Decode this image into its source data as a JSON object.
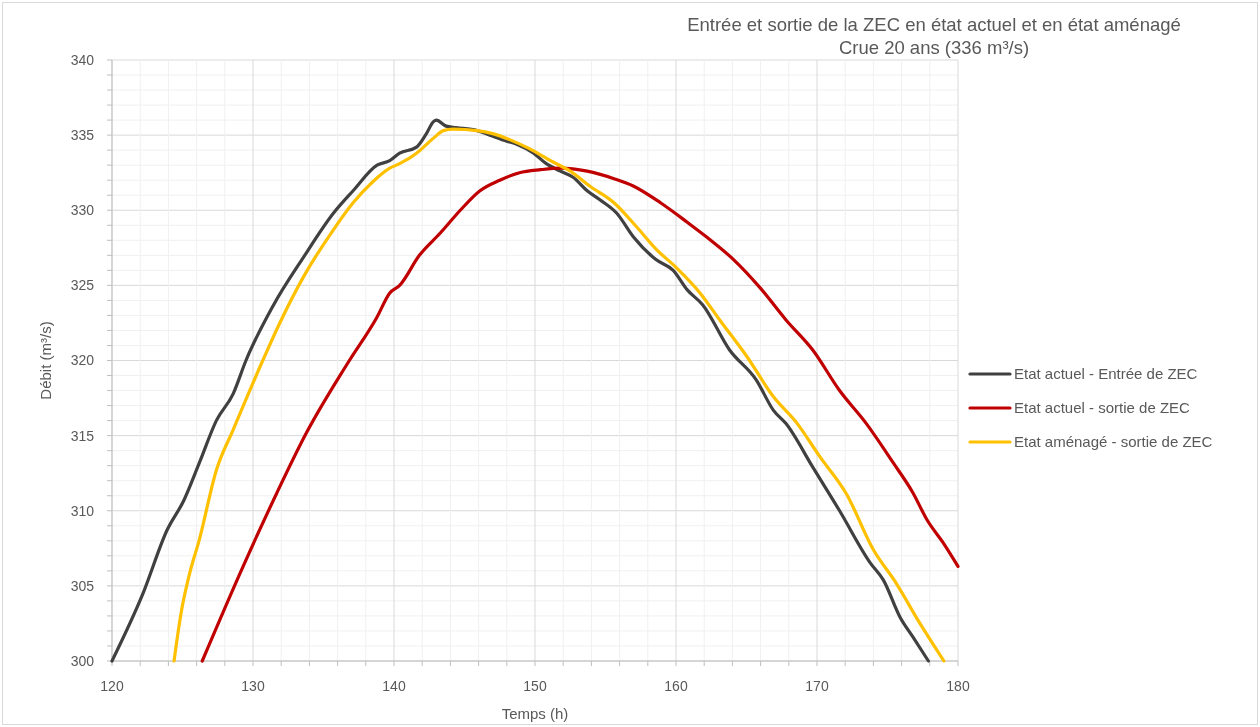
{
  "chart_data": {
    "type": "line",
    "title": "Entrée et sortie de la ZEC en état actuel et en état aménagé",
    "subtitle": "Crue 20 ans (336 m³/s)",
    "xlabel": "Temps (h)",
    "ylabel": "Débit (m³/s)",
    "xlim": [
      120,
      180
    ],
    "xticks": [
      120,
      {
        "value": 122,
        "label": null
      },
      {
        "value": 124,
        "label": null
      },
      {
        "value": 126,
        "label": null
      },
      {
        "value": 128,
        "label": null
      },
      130,
      {
        "value": 132,
        "label": null
      },
      {
        "value": 134,
        "label": null
      },
      {
        "value": 136,
        "label": null
      },
      {
        "value": 138,
        "label": null
      },
      140,
      {
        "value": 142,
        "label": null
      },
      {
        "value": 144,
        "label": null
      },
      {
        "value": 146,
        "label": null
      },
      {
        "value": 148,
        "label": null
      },
      150,
      {
        "value": 152,
        "label": null
      },
      {
        "value": 154,
        "label": null
      },
      {
        "value": 156,
        "label": null
      },
      {
        "value": 158,
        "label": null
      },
      160,
      {
        "value": 162,
        "label": null
      },
      {
        "value": 164,
        "label": null
      },
      {
        "value": 166,
        "label": null
      },
      {
        "value": 168,
        "label": null
      },
      170,
      {
        "value": 172,
        "label": null
      },
      {
        "value": 174,
        "label": null
      },
      {
        "value": 176,
        "label": null
      },
      {
        "value": 178,
        "label": null
      },
      180
    ],
    "ylim": [
      300,
      340
    ],
    "yticks": [
      300,
      {
        "value": 301,
        "label": null
      },
      {
        "value": 302,
        "label": null
      },
      {
        "value": 303,
        "label": null
      },
      {
        "value": 304,
        "label": null
      },
      305,
      {
        "value": 306,
        "label": null
      },
      {
        "value": 307,
        "label": null
      },
      {
        "value": 308,
        "label": null
      },
      {
        "value": 309,
        "label": null
      },
      310,
      {
        "value": 311,
        "label": null
      },
      {
        "value": 312,
        "label": null
      },
      {
        "value": 313,
        "label": null
      },
      {
        "value": 314,
        "label": null
      },
      315,
      {
        "value": 316,
        "label": null
      },
      {
        "value": 317,
        "label": null
      },
      {
        "value": 318,
        "label": null
      },
      {
        "value": 319,
        "label": null
      },
      320,
      {
        "value": 321,
        "label": null
      },
      {
        "value": 322,
        "label": null
      },
      {
        "value": 323,
        "label": null
      },
      {
        "value": 324,
        "label": null
      },
      325,
      {
        "value": 326,
        "label": null
      },
      {
        "value": 327,
        "label": null
      },
      {
        "value": 328,
        "label": null
      },
      {
        "value": 329,
        "label": null
      },
      330,
      {
        "value": 331,
        "label": null
      },
      {
        "value": 332,
        "label": null
      },
      {
        "value": 333,
        "label": null
      },
      {
        "value": 334,
        "label": null
      },
      335,
      {
        "value": 336,
        "label": null
      },
      {
        "value": 337,
        "label": null
      },
      {
        "value": 338,
        "label": null
      },
      {
        "value": 339,
        "label": null
      },
      340
    ],
    "grid": true,
    "legend": "right",
    "series": [
      {
        "name": "Etat actuel - Entrée de ZEC",
        "color": "#404040",
        "x": [
          120,
          122.2,
          123.9,
          125.1,
          126.2,
          127.4,
          128.6,
          129.5,
          131.4,
          133.6,
          135.7,
          137.1,
          138.8,
          139.7,
          140.4,
          141.6,
          142.3,
          142.8,
          143.0,
          143.7,
          144.4,
          145.9,
          146.8,
          148.0,
          148.7,
          149.9,
          150.8,
          151.8,
          152.7,
          153.7,
          154.6,
          155.8,
          157.0,
          158.6,
          159.8,
          160.8,
          161.9,
          163.8,
          165.7,
          166.9,
          167.8,
          169.7,
          171.6,
          173.8,
          174.7,
          175.9,
          176.8,
          177.9
        ],
        "values": [
          300,
          304.5,
          308.7,
          310.7,
          313.2,
          316.0,
          317.8,
          320.0,
          323.6,
          326.9,
          329.8,
          331.3,
          333.0,
          333.3,
          333.8,
          334.2,
          335.1,
          335.9,
          336.0,
          335.6,
          335.5,
          335.3,
          335.0,
          334.6,
          334.4,
          333.8,
          333.1,
          332.6,
          332.2,
          331.3,
          330.7,
          329.8,
          328.2,
          326.7,
          326.0,
          324.7,
          323.7,
          320.7,
          318.7,
          316.7,
          315.8,
          312.9,
          310.0,
          306.5,
          305.4,
          302.9,
          301.6,
          300
        ]
      },
      {
        "name": "Etat actuel - sortie de ZEC",
        "color": "#c00000",
        "x": [
          126.4,
          129.3,
          131.7,
          133.8,
          136.7,
          138.8,
          139.7,
          140.4,
          141.8,
          143.3,
          144.7,
          146.1,
          147.5,
          148.9,
          150.4,
          151.8,
          153.7,
          155.6,
          157.0,
          158.9,
          160.8,
          162.2,
          164.1,
          166.0,
          167.8,
          169.7,
          171.6,
          173.5,
          175.4,
          176.8,
          177.8,
          179.0,
          180
        ],
        "values": [
          300,
          306.3,
          311.2,
          315.2,
          319.8,
          322.9,
          324.5,
          325.0,
          327.0,
          328.5,
          330.0,
          331.3,
          332.0,
          332.5,
          332.7,
          332.8,
          332.6,
          332.1,
          331.6,
          330.5,
          329.2,
          328.2,
          326.7,
          324.8,
          322.7,
          320.7,
          318.0,
          315.8,
          313.2,
          311.2,
          309.4,
          307.8,
          306.3
        ]
      },
      {
        "name": "Etat aménagé - sortie de ZEC",
        "color": "#ffc000",
        "x": [
          124.4,
          124.9,
          125.5,
          126.2,
          127.4,
          128.6,
          130.6,
          131.9,
          133.6,
          135.7,
          137.1,
          138.5,
          139.7,
          140.4,
          141.6,
          142.8,
          143.5,
          144.2,
          145.9,
          147.0,
          148.2,
          149.6,
          151.1,
          152.5,
          153.9,
          155.6,
          157.2,
          158.6,
          160.0,
          161.7,
          163.1,
          165.0,
          166.9,
          168.6,
          170.2,
          172.1,
          174.0,
          175.6,
          177.3,
          179.0
        ],
        "values": [
          300,
          303.2,
          305.8,
          308.1,
          312.7,
          315.4,
          319.8,
          322.5,
          325.6,
          328.7,
          330.5,
          331.9,
          332.8,
          333.1,
          333.8,
          334.8,
          335.3,
          335.4,
          335.3,
          335.1,
          334.7,
          334.1,
          333.3,
          332.6,
          331.6,
          330.5,
          328.9,
          327.4,
          326.2,
          324.5,
          322.7,
          320.3,
          317.6,
          315.8,
          313.6,
          311.1,
          307.4,
          305.2,
          302.5,
          300
        ]
      }
    ]
  }
}
